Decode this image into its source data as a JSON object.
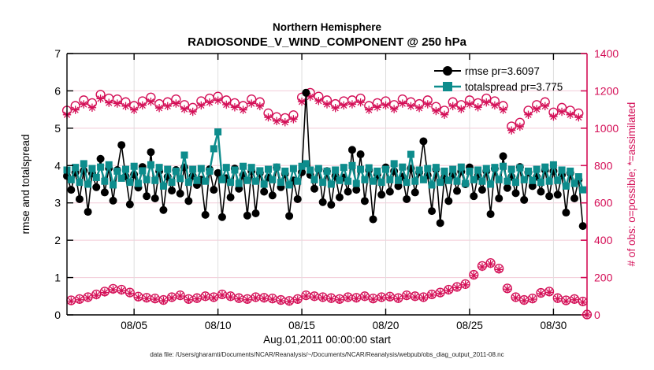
{
  "header": {
    "title_line1": "Northern Hemisphere",
    "title_line2": "RADIOSONDE_V_WIND_COMPONENT @ 250 hPa"
  },
  "legend": {
    "rmse_label": "rmse pr=3.6097",
    "totalspread_label": "totalspread pr=3.775"
  },
  "axes": {
    "left_label": "rmse and totalspread",
    "right_label": "# of obs: o=possible; *=assimilated",
    "x_label": "Aug.01,2011 00:00:00 start"
  },
  "footer": {
    "caption": "data file: /Users/gharamti/Documents/NCAR/Reanalysis/~/Documents/NCAR/Reanalysis/webpub/obs_diag_output_2011-08.nc"
  },
  "colors": {
    "rmse": "#000000",
    "totalspread": "#0d8c8c",
    "obs": "#d40f57",
    "grid_h": "#f3ccd8",
    "grid_v": "#dedede",
    "axis_black": "#000000"
  },
  "chart_data": {
    "type": "line",
    "title": "Northern Hemisphere",
    "subtitle": "RADIOSONDE_V_WIND_COMPONENT @ 250 hPa",
    "xlabel": "Aug.01,2011 00:00:00 start",
    "left_ylabel": "rmse and totalspread",
    "right_ylabel": "# of obs: o=possible; *=assimilated",
    "grid": true,
    "legend_position": "top-right-inside",
    "time_encoding": {
      "start_day": 0,
      "step_day": 0.25,
      "count": 125,
      "start_date_label": "Aug.01,2011 00:00:00"
    },
    "x_range_days": [
      0,
      31
    ],
    "x_tick_days": [
      4,
      9,
      14,
      19,
      24,
      29
    ],
    "x_tick_labels": [
      "08/05",
      "08/10",
      "08/15",
      "08/20",
      "08/25",
      "08/30"
    ],
    "left_ylim": [
      0,
      7
    ],
    "left_yticks": [
      0,
      1,
      2,
      3,
      4,
      5,
      6,
      7
    ],
    "right_ylim": [
      0,
      1400
    ],
    "right_yticks": [
      0,
      200,
      400,
      600,
      800,
      1000,
      1200,
      1400
    ],
    "series": {
      "rmse": {
        "name": "rmse pr=3.6097",
        "axis": "left",
        "marker": "filled-circle",
        "color": "#000000",
        "values": [
          3.72,
          3.35,
          3.81,
          3.1,
          3.86,
          2.76,
          3.79,
          3.42,
          4.18,
          3.28,
          3.93,
          3.06,
          3.88,
          4.55,
          3.71,
          2.96,
          3.76,
          3.41,
          3.96,
          3.18,
          4.36,
          3.12,
          3.85,
          2.81,
          3.7,
          3.33,
          3.88,
          3.25,
          3.95,
          3.05,
          3.72,
          3.48,
          3.62,
          2.68,
          3.9,
          3.35,
          3.8,
          2.62,
          3.66,
          3.15,
          3.92,
          3.38,
          3.74,
          2.66,
          3.85,
          2.72,
          3.8,
          3.3,
          3.68,
          3.2,
          3.95,
          3.42,
          3.78,
          2.65,
          3.6,
          3.1,
          3.82,
          5.95,
          3.75,
          3.38,
          3.9,
          3.02,
          3.85,
          2.95,
          3.72,
          3.15,
          3.68,
          3.3,
          4.42,
          3.35,
          4.3,
          3.05,
          3.88,
          2.56,
          3.76,
          3.22,
          3.95,
          3.3,
          3.85,
          3.45,
          3.7,
          3.1,
          3.92,
          3.28,
          3.82,
          4.65,
          3.74,
          2.78,
          3.9,
          2.46,
          3.68,
          3.05,
          3.76,
          3.32,
          3.84,
          3.5,
          3.95,
          3.18,
          3.72,
          3.35,
          3.85,
          2.7,
          3.92,
          3.12,
          4.25,
          3.4,
          3.7,
          3.26,
          3.96,
          3.08,
          3.82,
          3.45,
          3.7,
          3.3,
          3.88,
          3.18,
          3.85,
          3.22,
          3.75,
          2.74,
          3.8,
          3.12,
          3.62,
          2.38,
          null
        ]
      },
      "totalspread": {
        "name": "totalspread pr=3.775",
        "axis": "left",
        "marker": "filled-square",
        "color": "#0d8c8c",
        "values": [
          3.88,
          3.62,
          3.95,
          3.55,
          4.05,
          3.5,
          3.92,
          3.68,
          3.96,
          3.58,
          4.02,
          3.48,
          3.85,
          3.66,
          3.9,
          3.55,
          3.98,
          3.52,
          3.86,
          3.62,
          4.02,
          3.6,
          3.95,
          3.45,
          3.9,
          3.55,
          3.85,
          3.65,
          4.28,
          3.55,
          3.9,
          3.6,
          3.92,
          3.58,
          3.85,
          4.45,
          4.9,
          3.62,
          3.95,
          3.55,
          3.88,
          3.52,
          3.98,
          3.6,
          3.95,
          3.58,
          3.86,
          3.5,
          3.9,
          3.62,
          3.96,
          3.55,
          3.85,
          3.48,
          3.92,
          3.58,
          3.98,
          4.05,
          3.88,
          3.62,
          3.92,
          3.55,
          3.85,
          3.5,
          3.88,
          3.6,
          3.95,
          3.58,
          4.0,
          3.52,
          3.9,
          3.62,
          3.94,
          3.58,
          3.85,
          3.55,
          3.9,
          3.62,
          4.05,
          3.6,
          3.96,
          3.55,
          4.3,
          3.58,
          3.88,
          3.62,
          3.92,
          3.48,
          3.95,
          3.55,
          3.85,
          3.6,
          3.9,
          3.58,
          3.96,
          3.52,
          3.85,
          3.62,
          3.88,
          3.58,
          3.92,
          3.5,
          3.95,
          3.62,
          3.98,
          3.58,
          3.9,
          3.55,
          3.94,
          3.62,
          3.85,
          3.6,
          3.9,
          3.55,
          3.96,
          3.58,
          4.02,
          3.6,
          3.88,
          3.45,
          3.85,
          3.52,
          3.7,
          3.35,
          null
        ]
      },
      "obs_possible": {
        "name": "# of obs possible",
        "axis": "right",
        "marker": "open-circle",
        "color": "#d40f57",
        "values": [
          1095,
          78,
          1120,
          85,
          1150,
          95,
          1135,
          110,
          1180,
          125,
          1160,
          140,
          1155,
          135,
          1140,
          120,
          1120,
          98,
          1145,
          92,
          1165,
          88,
          1130,
          80,
          1140,
          95,
          1155,
          105,
          1125,
          85,
          1110,
          90,
          1145,
          100,
          1160,
          95,
          1170,
          110,
          1150,
          100,
          1135,
          90,
          1120,
          85,
          1155,
          95,
          1140,
          92,
          1080,
          88,
          1060,
          80,
          1055,
          75,
          1070,
          85,
          1165,
          105,
          1190,
          100,
          1170,
          95,
          1150,
          90,
          1130,
          85,
          1145,
          95,
          1150,
          92,
          1160,
          100,
          1120,
          88,
          1135,
          95,
          1145,
          98,
          1125,
          90,
          1155,
          105,
          1140,
          100,
          1130,
          95,
          1150,
          110,
          1115,
          120,
          1095,
          135,
          1140,
          150,
          1125,
          165,
          1150,
          215,
          1135,
          262,
          1160,
          278,
          1145,
          248,
          1120,
          142,
          1010,
          95,
          1030,
          80,
          1095,
          88,
          1125,
          118,
          1140,
          125,
          1085,
          90,
          1110,
          78,
          1095,
          85,
          1080,
          72,
          2
        ]
      },
      "obs_assimilated": {
        "name": "# of obs assimilated",
        "axis": "right",
        "marker": "asterisk",
        "color": "#d40f57",
        "values": [
          1072,
          74,
          1098,
          81,
          1128,
          91,
          1110,
          105,
          1158,
          120,
          1136,
          135,
          1132,
          130,
          1118,
          116,
          1098,
          94,
          1122,
          88,
          1142,
          84,
          1108,
          76,
          1118,
          91,
          1132,
          101,
          1102,
          81,
          1088,
          86,
          1122,
          96,
          1138,
          91,
          1148,
          106,
          1126,
          96,
          1112,
          86,
          1098,
          81,
          1132,
          91,
          1118,
          88,
          1058,
          84,
          1038,
          76,
          1032,
          71,
          1048,
          81,
          1142,
          101,
          1168,
          96,
          1146,
          91,
          1128,
          86,
          1108,
          81,
          1122,
          91,
          1128,
          88,
          1138,
          96,
          1098,
          84,
          1112,
          91,
          1122,
          94,
          1102,
          86,
          1132,
          101,
          1118,
          96,
          1108,
          91,
          1128,
          106,
          1092,
          116,
          1072,
          131,
          1118,
          146,
          1102,
          161,
          1128,
          211,
          1112,
          257,
          1138,
          273,
          1122,
          243,
          1098,
          138,
          988,
          91,
          1008,
          76,
          1072,
          84,
          1102,
          114,
          1118,
          121,
          1062,
          86,
          1088,
          74,
          1072,
          81,
          1058,
          68,
          0
        ]
      }
    }
  }
}
